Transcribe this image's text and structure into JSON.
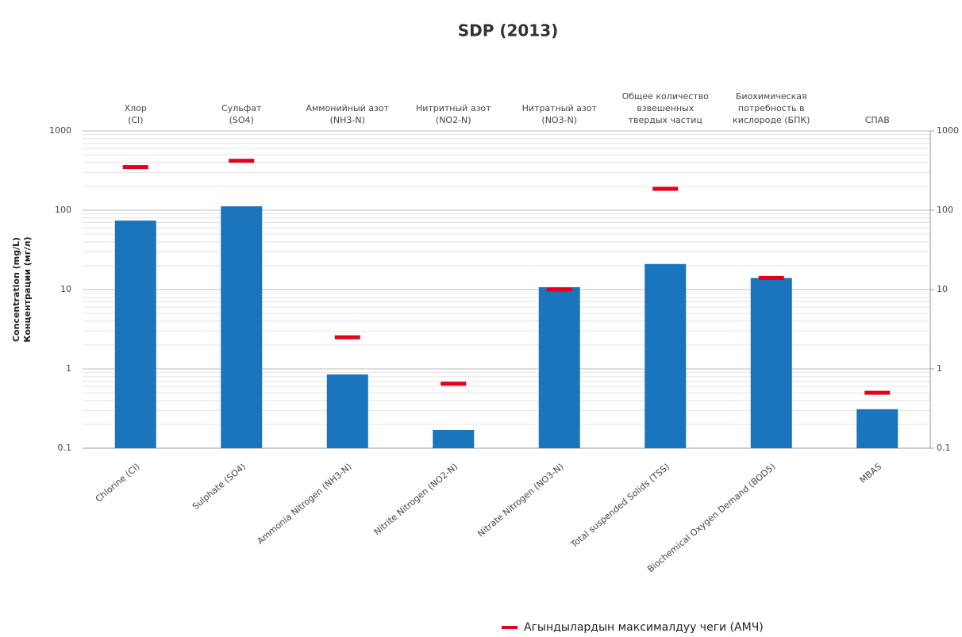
{
  "chart_data": {
    "type": "bar",
    "title": "SDP (2013)",
    "y_label": [
      "Concentration (mg/L)",
      "Концентрации (мг/л)"
    ],
    "categories": [
      "Chlorine (Cl)",
      "Sulphate (SO4)",
      "Ammonia Nitrogen (NH3-N)",
      "Nitrite Nitrogen (NO2-N)",
      "Nitrate Nitrogen (NO3-N)",
      "Total suspended Solids (TSS)",
      "Biochemical Oxygen Demand (BOD5)",
      "MBAS"
    ],
    "top_labels": [
      [
        "Хлор",
        "(Cl)"
      ],
      [
        "Сульфат",
        "(SO4)"
      ],
      [
        "Аммонийный азот",
        "(NH3-N)"
      ],
      [
        "Нитритный азот",
        "(NO2-N)"
      ],
      [
        "Нитратный азот",
        "(NO3-N)"
      ],
      [
        "Общее количество",
        "взвешенных",
        "твердых частиц"
      ],
      [
        "Биохимическая",
        "потребность в",
        "кислороде (БПК)"
      ],
      [
        "СПАВ"
      ]
    ],
    "series": [
      {
        "color": "#1a75bc",
        "values": [
          74,
          112,
          0.85,
          0.17,
          10.7,
          21,
          14,
          0.31
        ]
      },
      {
        "name": "Агындылардын максималдуу чеги (АМЧ)",
        "color": "#e3001b",
        "marker": "dash",
        "values": [
          350,
          420,
          2.5,
          0.65,
          10,
          186,
          14,
          0.5
        ]
      }
    ],
    "log_scale": true,
    "ylim": [
      0.1,
      1000
    ],
    "yticks": [
      0.1,
      1,
      10,
      100,
      1000
    ],
    "y2lim": [
      0.1,
      1000
    ],
    "y2ticks": [
      0.1,
      1,
      10,
      100,
      1000
    ],
    "grid": true,
    "legend": "bottom-right"
  }
}
